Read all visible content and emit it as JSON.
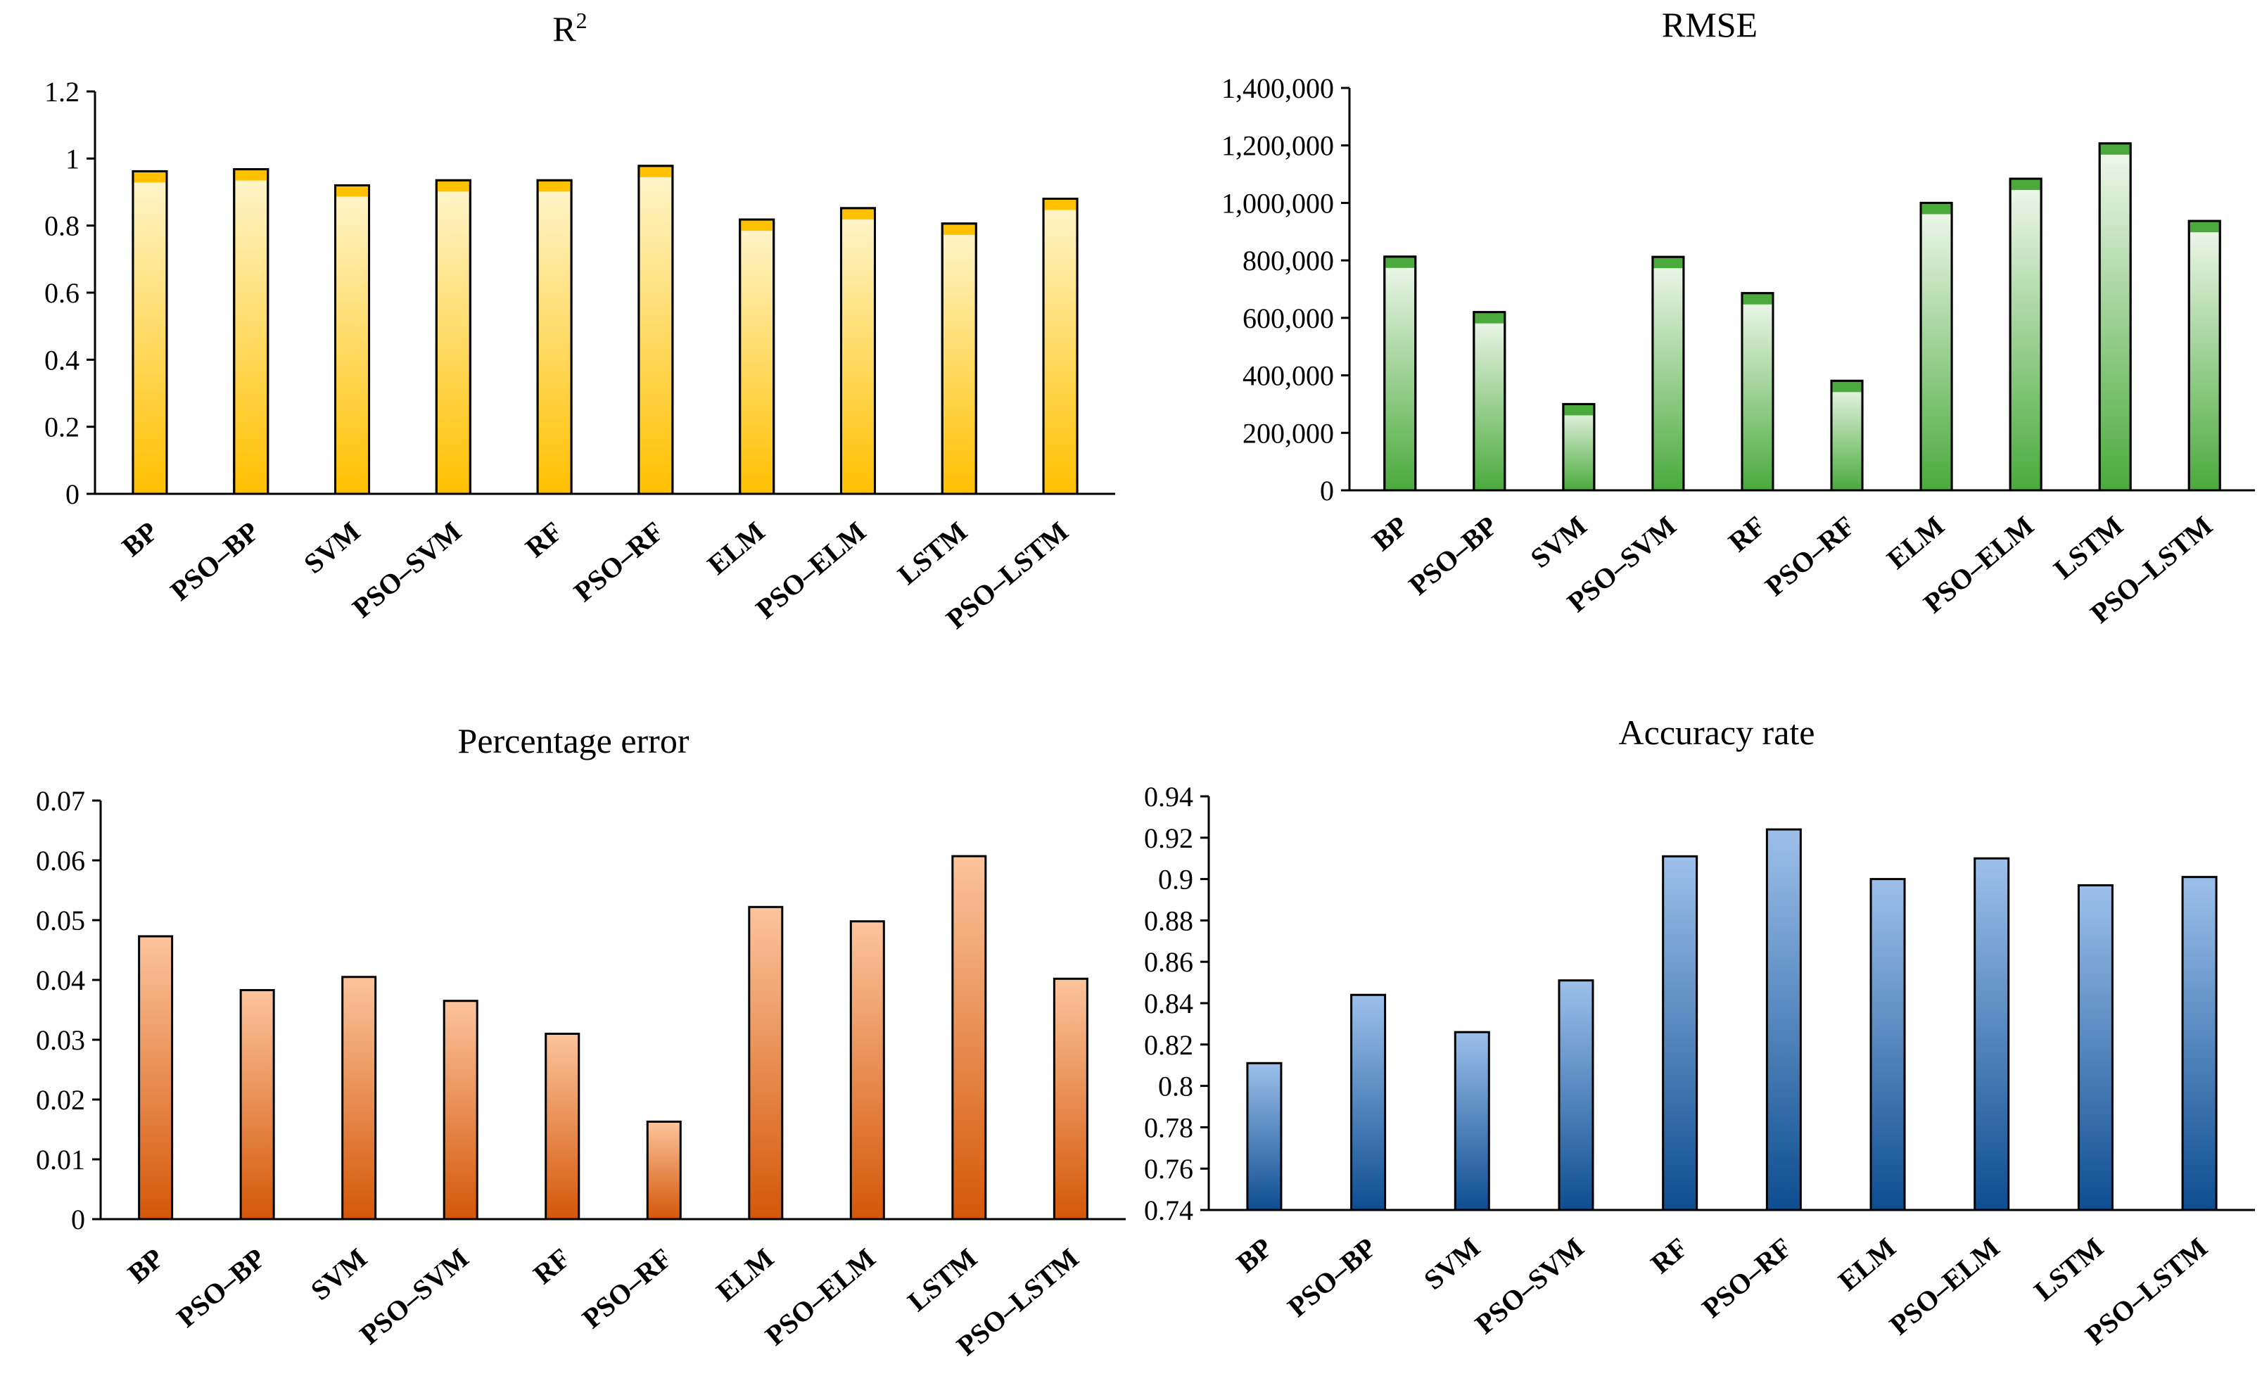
{
  "figure": {
    "panels": [
      {
        "title_main": "R",
        "title_sup": "2"
      },
      {
        "title_main": "RMSE",
        "title_sup": ""
      },
      {
        "title_main": "Percentage error",
        "title_sup": ""
      },
      {
        "title_main": "Accuracy rate",
        "title_sup": ""
      }
    ]
  },
  "chart_data": [
    {
      "type": "bar",
      "title": "R2",
      "categories": [
        "BP",
        "PSO–BP",
        "SVM",
        "PSO–SVM",
        "RF",
        "PSO–RF",
        "ELM",
        "PSO–ELM",
        "LSTM",
        "PSO–LSTM"
      ],
      "values": [
        0.962,
        0.968,
        0.92,
        0.935,
        0.935,
        0.978,
        0.818,
        0.852,
        0.806,
        0.88
      ],
      "yticks": [
        "0",
        "0.2",
        "0.4",
        "0.6",
        "0.8",
        "1",
        "1.2"
      ],
      "ylim": [
        0,
        1.2
      ],
      "xlabel": "",
      "ylabel": "",
      "grid": false,
      "colors": {
        "top": "#fff6cf",
        "bottom": "#ffc000",
        "cap": "#ffc000"
      }
    },
    {
      "type": "bar",
      "title": "RMSE",
      "categories": [
        "BP",
        "PSO–BP",
        "SVM",
        "PSO–SVM",
        "RF",
        "PSO–RF",
        "ELM",
        "PSO–ELM",
        "LSTM",
        "PSO–LSTM"
      ],
      "values": [
        813000,
        620000,
        300000,
        812000,
        686000,
        381000,
        1000000,
        1084000,
        1207000,
        937000
      ],
      "yticks": [
        "0",
        "200,000",
        "400,000",
        "600,000",
        "800,000",
        "1,000,000",
        "1,200,000",
        "1,400,000"
      ],
      "ylim": [
        0,
        1400000
      ],
      "xlabel": "",
      "ylabel": "",
      "grid": false,
      "colors": {
        "top": "#f2f9ef",
        "bottom": "#4aaa3c",
        "cap": "#4aaa3c"
      }
    },
    {
      "type": "bar",
      "title": "Percentage error",
      "categories": [
        "BP",
        "PSO–BP",
        "SVM",
        "PSO–SVM",
        "RF",
        "PSO–RF",
        "ELM",
        "PSO–ELM",
        "LSTM",
        "PSO–LSTM"
      ],
      "values": [
        0.0473,
        0.0383,
        0.0405,
        0.0365,
        0.031,
        0.0163,
        0.0522,
        0.0498,
        0.0607,
        0.0402
      ],
      "yticks": [
        "0",
        "0.01",
        "0.02",
        "0.03",
        "0.04",
        "0.05",
        "0.06",
        "0.07"
      ],
      "ylim": [
        0,
        0.07
      ],
      "xlabel": "",
      "ylabel": "",
      "grid": false,
      "colors": {
        "top": "#fcc49d",
        "bottom": "#d45708"
      }
    },
    {
      "type": "bar",
      "title": "Accuracy rate",
      "categories": [
        "BP",
        "PSO–BP",
        "SVM",
        "PSO–SVM",
        "RF",
        "PSO–RF",
        "ELM",
        "PSO–ELM",
        "LSTM",
        "PSO–LSTM"
      ],
      "values": [
        0.811,
        0.844,
        0.826,
        0.851,
        0.911,
        0.924,
        0.9,
        0.91,
        0.897,
        0.901
      ],
      "yticks": [
        "0.74",
        "0.76",
        "0.78",
        "0.8",
        "0.82",
        "0.84",
        "0.86",
        "0.88",
        "0.9",
        "0.92",
        "0.94"
      ],
      "ylim": [
        0.74,
        0.94
      ],
      "xlabel": "",
      "ylabel": "",
      "grid": false,
      "colors": {
        "top": "#9dc0ea",
        "bottom": "#0d4d91"
      }
    }
  ]
}
